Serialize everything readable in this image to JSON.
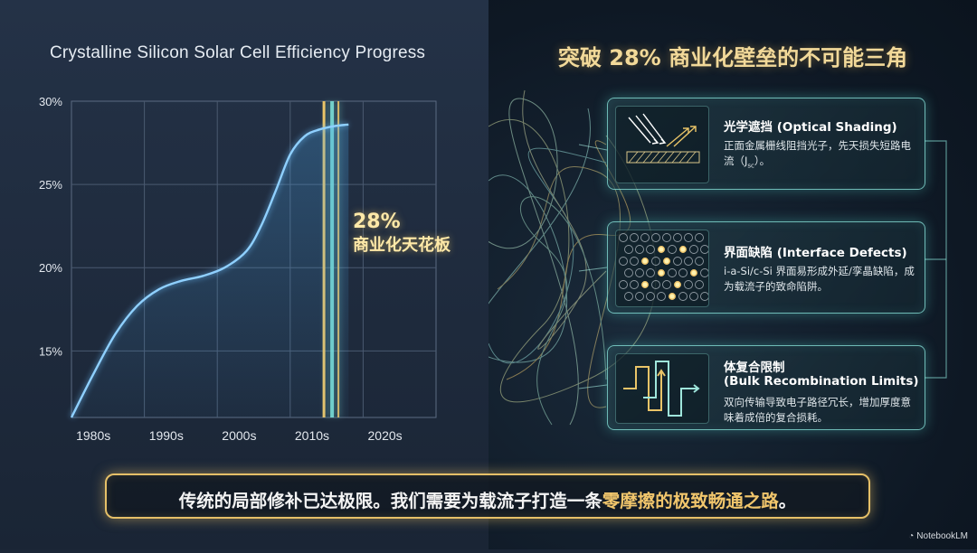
{
  "left": {
    "title": "Crystalline Silicon Solar Cell Efficiency Progress",
    "ceiling_percent": "28%",
    "ceiling_label": "商业化天花板"
  },
  "chart_data": {
    "type": "line",
    "title": "Crystalline Silicon Solar Cell Efficiency Progress",
    "categories": [
      "1980s",
      "1990s",
      "2000s",
      "2010s",
      "2020s"
    ],
    "y_ticks": [
      "30%",
      "25%",
      "20%",
      "15%"
    ],
    "ylim": [
      11,
      30
    ],
    "xlim": [
      1980,
      2030
    ],
    "grid": true,
    "series": [
      {
        "x": [
          1980,
          1983,
          1986,
          1989,
          1992,
          1995,
          1998,
          2001,
          2004,
          2006,
          2008,
          2010,
          2012,
          2014,
          2016,
          2018
        ],
        "values": [
          11.0,
          13.6,
          16.0,
          17.7,
          18.7,
          19.2,
          19.5,
          20.0,
          21.0,
          22.5,
          24.6,
          26.8,
          27.9,
          28.3,
          28.5,
          28.6
        ]
      }
    ],
    "annotations": [
      {
        "x": 2015,
        "label": "28% 商业化天花板"
      }
    ],
    "colors": {
      "line": "#8fd0ff",
      "ceiling_gold": "#e9c468",
      "ceiling_cyan": "#7fe8de"
    }
  },
  "right": {
    "title": "突破 28% 商业化壁垒的不可能三角",
    "cards": [
      {
        "icon": "optical-shading-icon",
        "title": "光学遮挡 (Optical Shading)",
        "body_pre": "正面金属栅线阻挡光子，先天损失短路电流（J",
        "body_sub": "sc",
        "body_post": "）。"
      },
      {
        "icon": "interface-defects-icon",
        "title": "界面缺陷 (Interface Defects)",
        "body": "i-a-Si/c-Si 界面易形成外延/孪晶缺陷，成为载流子的致命陷阱。"
      },
      {
        "icon": "bulk-recombination-icon",
        "title_line1": "体复合限制",
        "title_line2": "(Bulk Recombination Limits)",
        "body": "双向传输导致电子路径冗长，增加厚度意味着成倍的复合损耗。"
      }
    ]
  },
  "bottom": {
    "text_pre": "传统的局部修补已达极限。我们需要为载流子打造一条",
    "text_highlight": "零摩擦的极致畅通之路",
    "text_post": "。"
  },
  "brand": {
    "label": "NotebookLM"
  }
}
